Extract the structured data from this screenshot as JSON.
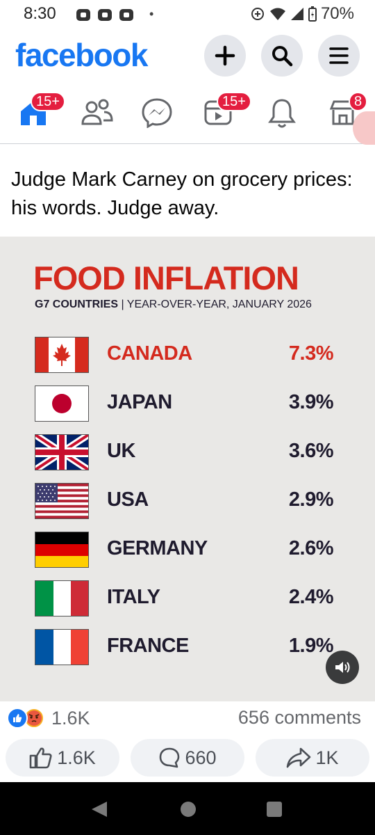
{
  "status": {
    "time": "8:30",
    "battery": "70%"
  },
  "header": {
    "logo": "facebook"
  },
  "nav": {
    "home_badge": "15+",
    "video_badge": "15+",
    "market_badge": "8"
  },
  "post": {
    "text": "Judge Mark Carney on grocery prices: his words. Judge away.",
    "infographic": {
      "title": "FOOD INFLATION",
      "subtitle_bold": "G7 COUNTRIES",
      "subtitle_rest": " | YEAR-OVER-YEAR, JANUARY 2026",
      "rows": [
        {
          "country": "CANADA",
          "value": "7.3%",
          "flag": "canada-flag"
        },
        {
          "country": "JAPAN",
          "value": "3.9%",
          "flag": "japan-flag"
        },
        {
          "country": "UK",
          "value": "3.6%",
          "flag": "uk-flag"
        },
        {
          "country": "USA",
          "value": "2.9%",
          "flag": "usa-flag"
        },
        {
          "country": "GERMANY",
          "value": "2.6%",
          "flag": "germany-flag"
        },
        {
          "country": "ITALY",
          "value": "2.4%",
          "flag": "italy-flag"
        },
        {
          "country": "FRANCE",
          "value": "1.9%",
          "flag": "france-flag"
        }
      ]
    },
    "reactions_count": "1.6K",
    "comments_count": "656 comments",
    "actions": {
      "like": "1.6K",
      "comment": "660",
      "share": "1K"
    }
  },
  "colors": {
    "brand": "#1877f2",
    "accent_red": "#d42a1e",
    "text_dark": "#1f1b2e"
  }
}
